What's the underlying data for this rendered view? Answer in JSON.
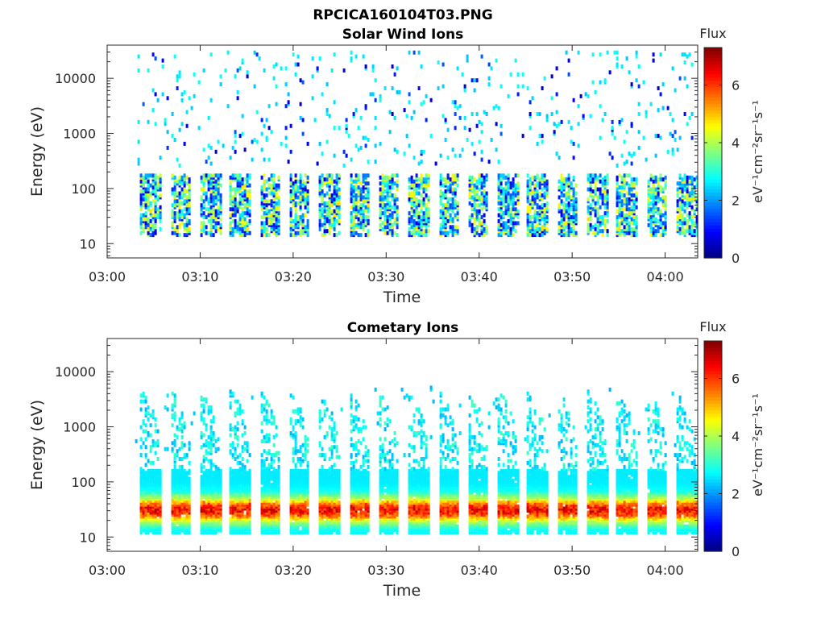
{
  "figure": {
    "title": "RPCICA160104T03.PNG"
  },
  "colors": {
    "colormap": "jet",
    "axis": "#262626",
    "background": "#ffffff"
  },
  "chart_data": [
    {
      "type": "heatmap",
      "title": "Solar Wind Ions",
      "xlabel": "Time",
      "ylabel": "Energy (eV)",
      "x_ticks": [
        "03:00",
        "03:10",
        "03:20",
        "03:30",
        "03:40",
        "03:50",
        "04:00"
      ],
      "x_tick_minutes": [
        0,
        10,
        20,
        30,
        40,
        50,
        60
      ],
      "xlim_minutes": [
        0,
        63.5
      ],
      "y_ticks": [
        "10",
        "100",
        "1000",
        "10000"
      ],
      "y_tick_values": [
        10,
        100,
        1000,
        10000
      ],
      "yscale": "log",
      "ylim": [
        5.5,
        40000
      ],
      "colorbar": {
        "label": "Flux",
        "unit": "eV⁻¹cm⁻²sr⁻¹s⁻¹",
        "ticks": [
          "0",
          "2",
          "4",
          "6"
        ],
        "range": [
          0,
          7.3
        ]
      },
      "sweep_start_minutes": [
        3.5,
        6.7,
        9.9,
        13.1,
        16.3,
        19.5,
        22.7,
        25.9,
        29.1,
        32.3,
        35.5,
        38.7,
        41.9,
        45.1,
        48.3,
        51.5,
        54.7,
        57.9,
        61.1
      ],
      "description_of_bands": {
        "low_energy_flux_range_eV": [
          15,
          200
        ],
        "peak_flux_value": 4.5,
        "scattered_high_energy_range_eV": [
          300,
          30000
        ],
        "scattered_flux_value": 2.5
      }
    },
    {
      "type": "heatmap",
      "title": "Cometary Ions",
      "xlabel": "Time",
      "ylabel": "Energy (eV)",
      "x_ticks": [
        "03:00",
        "03:10",
        "03:20",
        "03:30",
        "03:40",
        "03:50",
        "04:00"
      ],
      "x_tick_minutes": [
        0,
        10,
        20,
        30,
        40,
        50,
        60
      ],
      "xlim_minutes": [
        0,
        63.5
      ],
      "y_ticks": [
        "10",
        "100",
        "1000",
        "10000"
      ],
      "y_tick_values": [
        10,
        100,
        1000,
        10000
      ],
      "yscale": "log",
      "ylim": [
        5.5,
        40000
      ],
      "colorbar": {
        "label": "Flux",
        "unit": "eV⁻¹cm⁻²sr⁻¹s⁻¹",
        "ticks": [
          "0",
          "2",
          "4",
          "6"
        ],
        "range": [
          0,
          7.3
        ]
      },
      "sweep_start_minutes": [
        3.5,
        6.7,
        9.9,
        13.1,
        16.3,
        19.5,
        22.7,
        25.9,
        29.1,
        32.3,
        35.5,
        38.7,
        41.9,
        45.1,
        48.3,
        51.5,
        54.7,
        57.9,
        61.1
      ],
      "description_of_bands": {
        "low_energy_flux_range_eV": [
          15,
          150
        ],
        "peak_flux_value": 6.5,
        "tail_energy_range_eV": [
          150,
          5000
        ],
        "tail_flux_value": 2.5
      }
    }
  ]
}
